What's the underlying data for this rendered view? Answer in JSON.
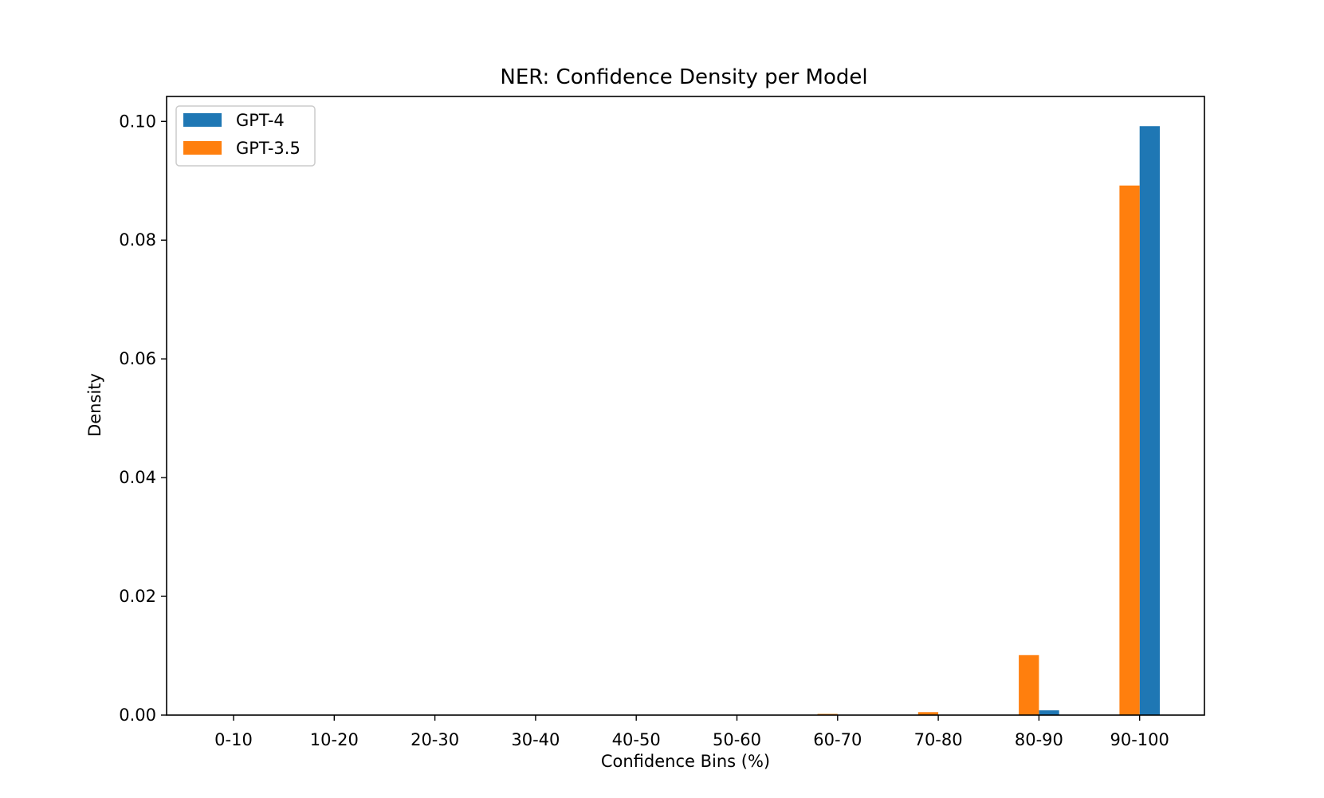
{
  "chart_data": {
    "type": "bar",
    "title": "NER: Confidence Density per Model",
    "xlabel": "Confidence Bins (%)",
    "ylabel": "Density",
    "categories": [
      "0-10",
      "10-20",
      "20-30",
      "30-40",
      "40-50",
      "50-60",
      "60-70",
      "70-80",
      "80-90",
      "90-100"
    ],
    "series": [
      {
        "name": "GPT-4",
        "color": "#1f77b4",
        "values": [
          0,
          0,
          0,
          0,
          0,
          0,
          0,
          0,
          0.0008,
          0.0992
        ]
      },
      {
        "name": "GPT-3.5",
        "color": "#ff7f0e",
        "values": [
          0,
          0,
          0,
          0,
          0,
          0,
          0.0002,
          0.0005,
          0.0101,
          0.0892
        ]
      }
    ],
    "ylim": [
      0,
      0.1042
    ],
    "yticks": [
      0.0,
      0.02,
      0.04,
      0.06,
      0.08,
      0.1
    ],
    "ytick_labels": [
      "0.00",
      "0.02",
      "0.04",
      "0.06",
      "0.08",
      "0.10"
    ],
    "grid": false,
    "legend_position": "top-left"
  }
}
